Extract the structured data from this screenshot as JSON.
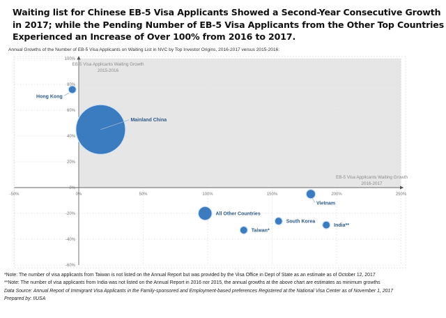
{
  "header": {
    "title": "Waiting list for Chinese EB-5 Visa Applicants Showed a Second-Year Consecutive Growth in 2017; while the Pending Number of EB-5 Visa Applicants from the Other Top Countries Experienced an Increase of Over 100% from 2016 to 2017.",
    "subtitle": "Annual Growths of the Number of EB-5 Visa Applicants on Waiting List in NVC by Top Investor Origins, 2016-2017 versus 2015-2016:"
  },
  "chart_data": {
    "type": "scatter",
    "subtype": "bubble",
    "title": "Annual Growths of the Number of EB-5 Visa Applicants on Waiting List in NVC by Top Investor Origins, 2016-2017 versus 2015-2016",
    "xlabel": "EB-5 Visa Applicants Waiting Growth 2016-2017",
    "ylabel": "EB-5 Visa Applicants Waiting Growth 2015-2016",
    "xlim": [
      -50,
      250
    ],
    "ylim": [
      -60,
      100
    ],
    "x_ticks": [
      -50,
      0,
      50,
      100,
      150,
      200,
      250
    ],
    "y_ticks": [
      -60,
      -40,
      -20,
      0,
      20,
      40,
      60,
      80,
      100
    ],
    "x_tick_labels": [
      "-50%",
      "0%",
      "50%",
      "100%",
      "150%",
      "200%",
      "250%"
    ],
    "y_tick_labels": [
      "-60%",
      "-40%",
      "-20%",
      "0%",
      "20%",
      "40%",
      "60%",
      "80%",
      "100%"
    ],
    "grid": true,
    "highlight_quadrant": "top-right",
    "color": "#3b7bbf",
    "points": [
      {
        "name": "Hong Kong",
        "x": -5,
        "y": 76,
        "size": 2,
        "label_side": "left"
      },
      {
        "name": "Mainland China",
        "x": 17,
        "y": 45,
        "size": 100,
        "label_side": "right-up"
      },
      {
        "name": "All Other Countries",
        "x": 98,
        "y": -20,
        "size": 7,
        "label_side": "right"
      },
      {
        "name": "Vietnam",
        "x": 180,
        "y": -5,
        "size": 3,
        "label_side": "below-right"
      },
      {
        "name": "South Korea",
        "x": 155,
        "y": -26,
        "size": 2,
        "label_side": "right"
      },
      {
        "name": "India**",
        "x": 192,
        "y": -29,
        "size": 2,
        "label_side": "right"
      },
      {
        "name": "Taiwan*",
        "x": 128,
        "y": -33,
        "size": 2,
        "label_side": "right"
      }
    ]
  },
  "notes": {
    "taiwan": "*Note: The number of visa applicants from Taiwan is not listed on the Annual Report but was provided by the Visa Office in Dept of State as an estimate as of October 12, 2017",
    "india": "**Note: The number of visa applicants from India was not listed on the Annual Report in 2016 nor 2015, the annual growths at the above chart are estimates as minimum growths",
    "source": "Data Source: Annual Report of Immigrant Visa Applicants in the Family-sponsored and Employment-based preferences Registered at the National Visa Center as of November 1, 2017",
    "prepared": "Prepared by: IIUSA"
  }
}
